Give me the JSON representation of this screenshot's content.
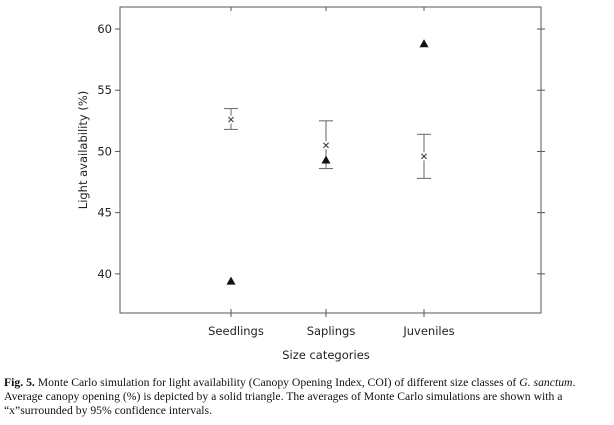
{
  "chart_data": {
    "type": "scatter",
    "xlabel": "Size categories",
    "ylabel": "Light availability (%)",
    "categories": [
      "Seedlings",
      "Saplings",
      "Juveniles"
    ],
    "ylim": [
      36.8,
      61.8
    ],
    "yticks": [
      40,
      45,
      50,
      55,
      60
    ],
    "grid": false,
    "legend": "none",
    "series": [
      {
        "marker": "triangle",
        "values": [
          39.4,
          49.3,
          58.8
        ]
      },
      {
        "marker": "x",
        "values": [
          52.6,
          50.5,
          49.6
        ],
        "ci_low": [
          51.8,
          48.6,
          47.8
        ],
        "ci_high": [
          53.5,
          52.5,
          51.4
        ]
      }
    ],
    "colors": {
      "axis": "#555555",
      "marker": "#111111",
      "error_bar": "#666666"
    }
  },
  "caption": {
    "fig_label": "Fig. 5.",
    "line1_text": " Monte Carlo simulation for light availability (Canopy Opening Index, COI) of different size classes of ",
    "species": "G. sanctum",
    "line1_end": ".",
    "line2": "Average canopy opening (%) is depicted by a solid triangle. The averages of Monte Carlo simulations are shown with a",
    "line3": "“x”surrounded by 95% confidence intervals."
  }
}
